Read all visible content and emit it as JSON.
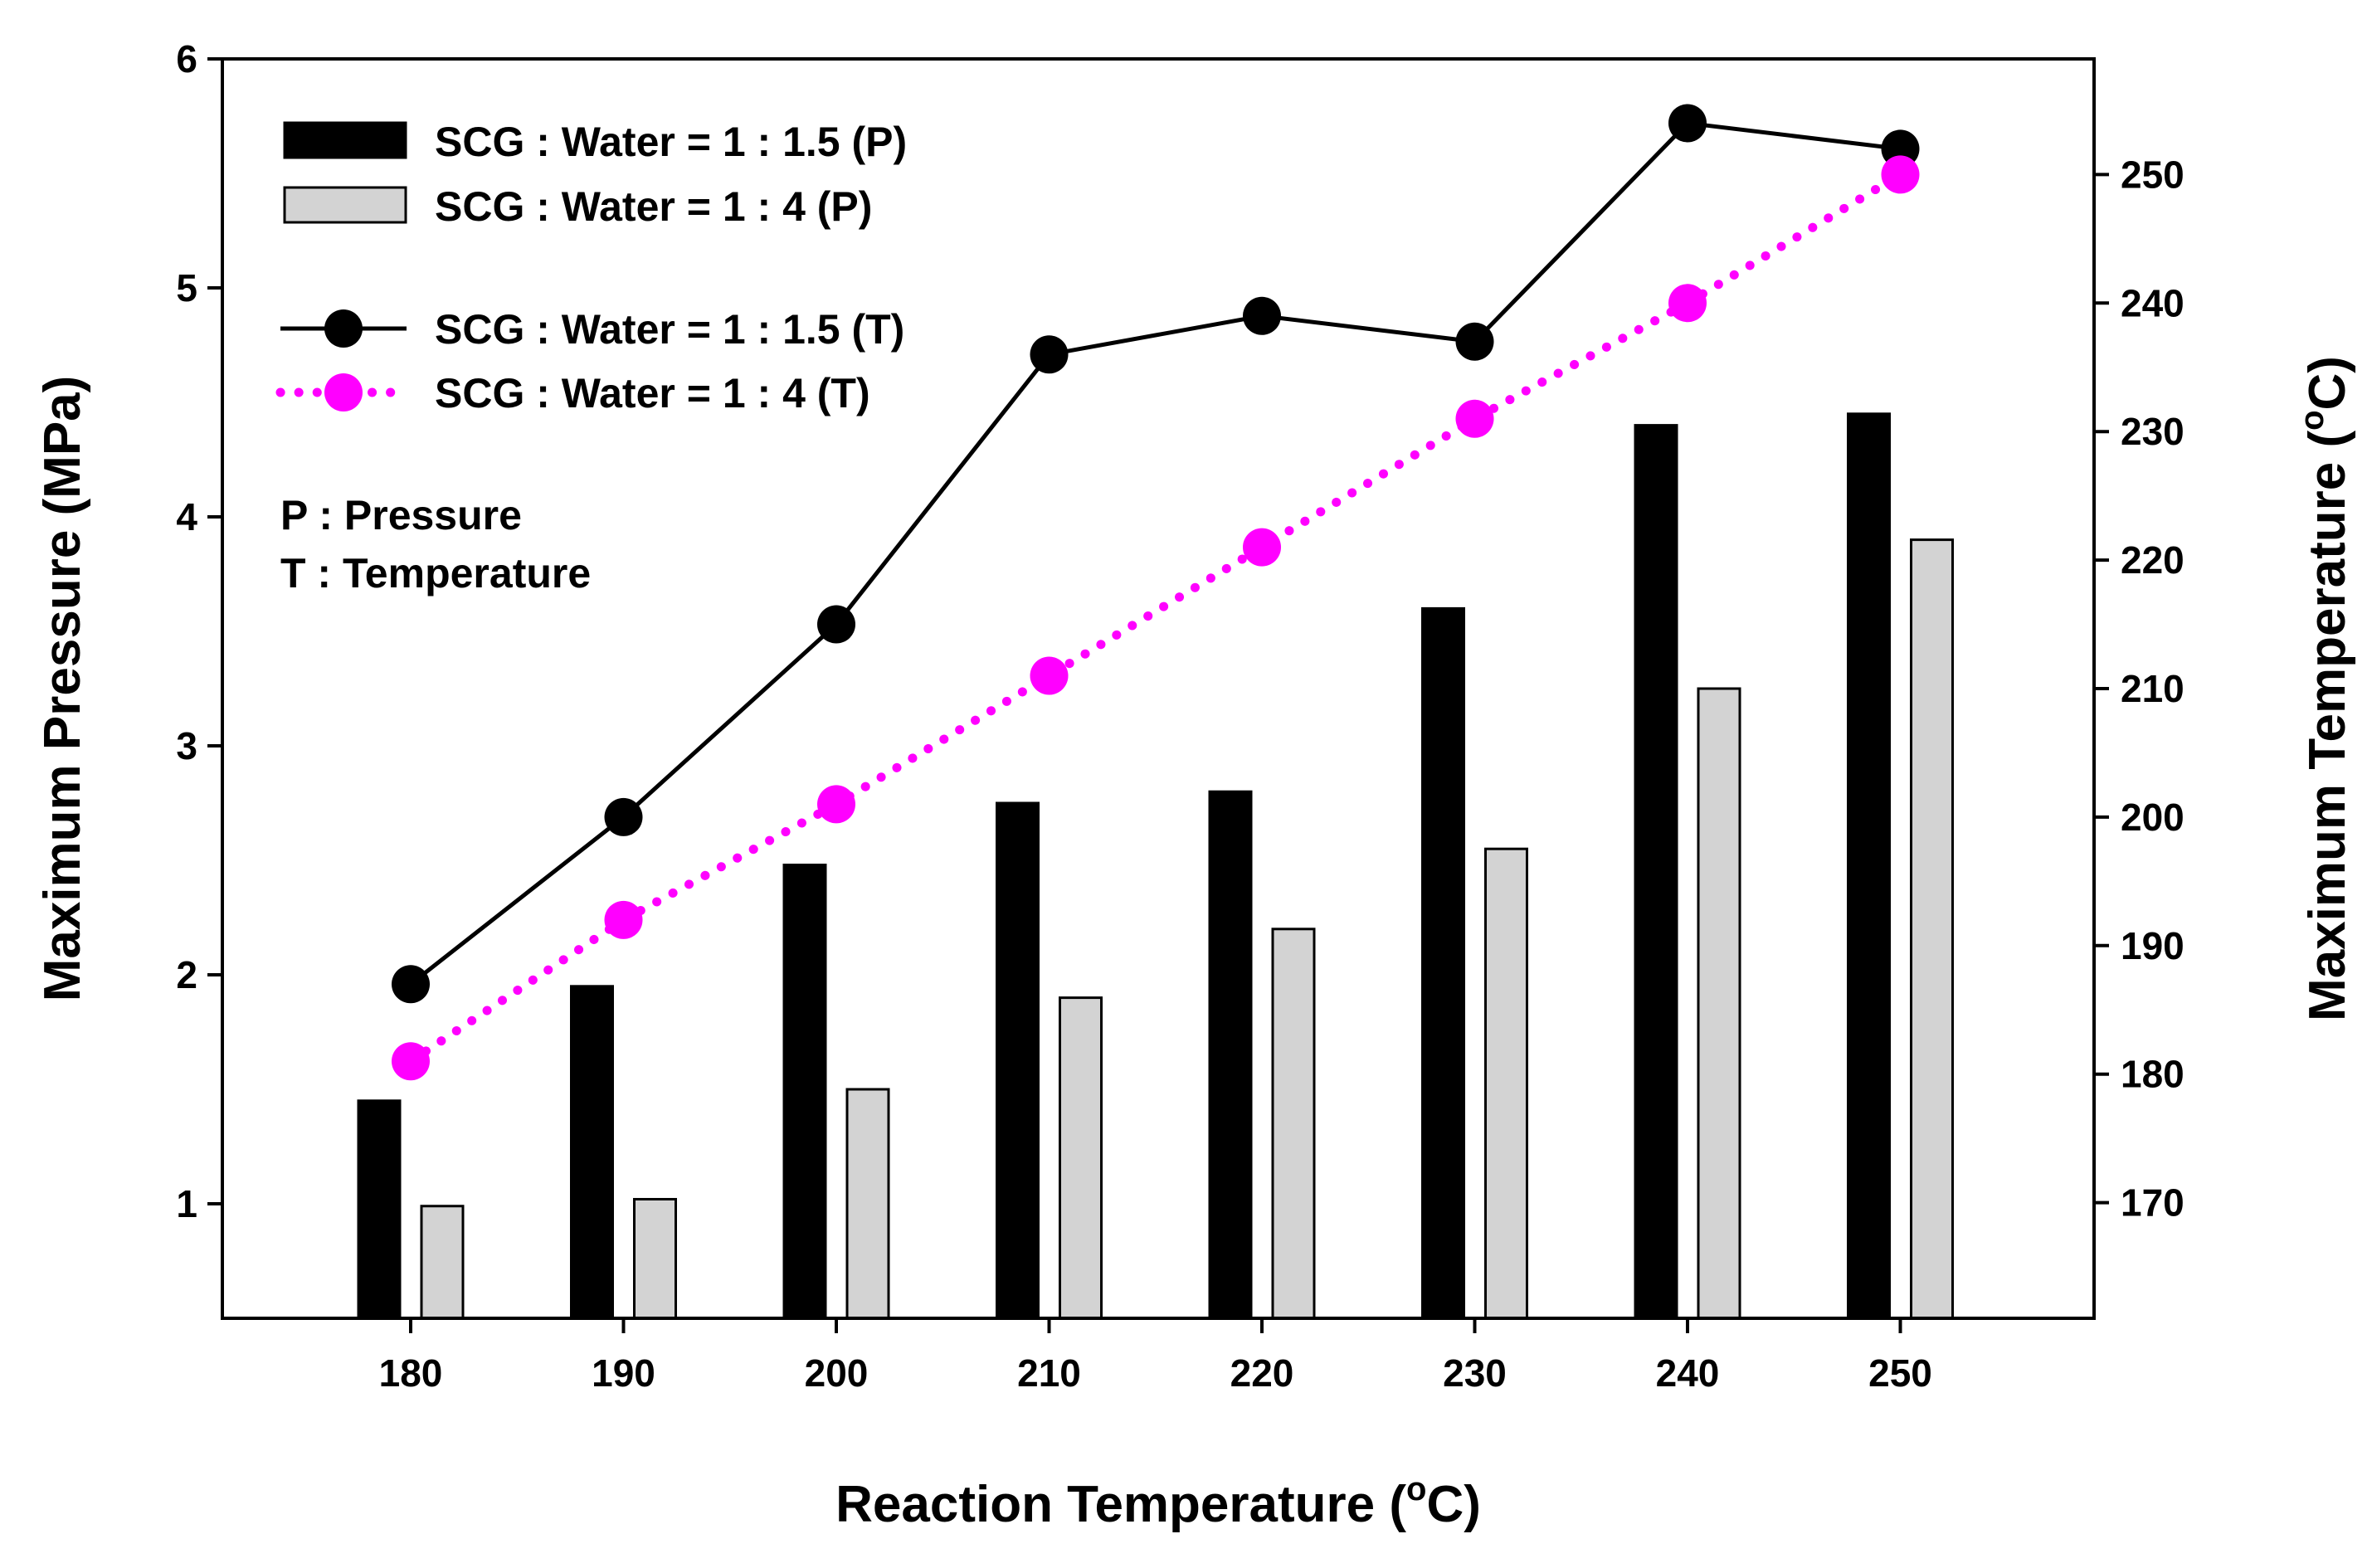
{
  "chart_data": {
    "type": "bar",
    "categories": [
      "180",
      "190",
      "200",
      "210",
      "220",
      "230",
      "240",
      "250"
    ],
    "xlabel": {
      "main": "Reaction Temperature (",
      "sup": "o",
      "tail": "C)"
    },
    "ylabel_left": "Maximum Pressure (MPa)",
    "ylabel_right": {
      "main": "Maximum Temperature (",
      "sup": "o",
      "tail": "C)"
    },
    "ylim_left": [
      0.5,
      6
    ],
    "yticks_left": [
      "1",
      "2",
      "3",
      "4",
      "5",
      "6"
    ],
    "ylim_right": [
      161,
      259
    ],
    "yticks_right": [
      "170",
      "180",
      "190",
      "200",
      "210",
      "220",
      "230",
      "240",
      "250"
    ],
    "bar_series": [
      {
        "name": "SCG : Water = 1 : 1.5 (P)",
        "color": "#000000",
        "values": [
          1.45,
          1.95,
          2.48,
          2.75,
          2.8,
          3.6,
          4.4,
          4.45
        ]
      },
      {
        "name": "SCG : Water = 1 : 4 (P)",
        "color": "#d3d3d3",
        "values": [
          0.99,
          1.02,
          1.5,
          1.9,
          2.2,
          2.55,
          3.25,
          3.9
        ]
      }
    ],
    "line_series": [
      {
        "name": "SCG : Water = 1 : 1.5 (T)",
        "color": "#000000",
        "style": "solid",
        "values": [
          187,
          200,
          215,
          236,
          239,
          237,
          254,
          252
        ]
      },
      {
        "name": "SCG : Water = 1 : 4 (T)",
        "color": "#ff00ff",
        "style": "dotted",
        "values": [
          181,
          192,
          201,
          211,
          221,
          231,
          240,
          250
        ]
      }
    ],
    "legend_position": "top-left",
    "annotations": [
      "P : Pressure",
      "T : Temperature"
    ]
  }
}
